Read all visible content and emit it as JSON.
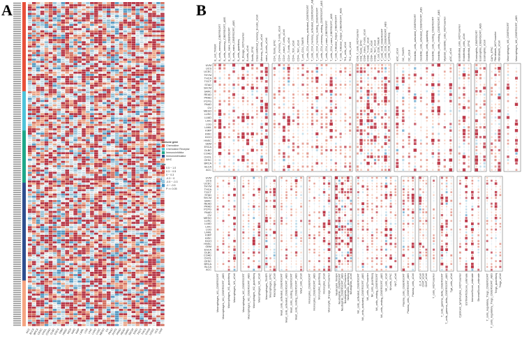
{
  "panels": {
    "a_label": "A",
    "b_label": "B"
  },
  "colors": {
    "chemokine": "#e8503a",
    "chemokine_receptor": "#4fc3d9",
    "immunoinhibitor": "#1fa88a",
    "immunostimulator": "#2f4f8f",
    "mhc": "#f4a582",
    "pos_strong": "#b2182b",
    "pos_mid": "#d6604d",
    "pos_weak": "#f4a582",
    "neg_weak": "#d1e5f0",
    "neg_mid": "#92c5de",
    "neg_strong": "#4393c3",
    "ns": "#eeeeee"
  },
  "legend": {
    "gene_title": "Immune gene",
    "genes": [
      "Chemokine",
      "Chemokine Receptor",
      "Immunoinhibitor",
      "Immunostimulator",
      "MHC"
    ],
    "cor_title": "cor",
    "cor_bins": [
      "0.5 ~ 1.0",
      "0.3 ~ 0.5",
      "0 ~ 0.3",
      "-0.3 ~ 0",
      "-0.5 ~ -0.3",
      "-1 ~ -0.5",
      "P >= 0.05"
    ]
  },
  "chart_data": [
    {
      "type": "heatmap",
      "panel": "A",
      "row_groups": [
        {
          "name": "Chemokine",
          "rows": 41
        },
        {
          "name": "Chemokine Receptor",
          "rows": 18
        },
        {
          "name": "Immunoinhibitor",
          "rows": 24
        },
        {
          "name": "Immunostimulator",
          "rows": 45
        },
        {
          "name": "MHC",
          "rows": 21
        }
      ],
      "columns": [
        "ACC",
        "BLCA",
        "BRCA",
        "CESC",
        "CHOL",
        "COAD",
        "DLBC",
        "ESCA",
        "GBM",
        "HNSC",
        "KICH",
        "KIRC",
        "KIRP",
        "LAML",
        "LGG",
        "LIHC",
        "LUAD",
        "LUSC",
        "MESO",
        "OV",
        "PAAD",
        "PCPG",
        "PRAD",
        "READ",
        "SARC",
        "SKCM",
        "STAD",
        "TGCT",
        "THCA",
        "THYM",
        "UCEC",
        "UCS",
        "UVM"
      ],
      "value_range": [
        -1,
        1
      ]
    },
    {
      "type": "heatmap",
      "panel": "B",
      "rows": [
        "UVM",
        "UCS",
        "UCEC",
        "THYM",
        "THCA",
        "TGCT",
        "STAD",
        "SKCM",
        "SARC",
        "READ",
        "PRAD",
        "PCPG",
        "PAAD",
        "OV",
        "MESO",
        "LUSC",
        "LUAD",
        "LIHC",
        "LGG",
        "LAML",
        "KIRP",
        "KIRC",
        "KICH",
        "HNSC",
        "GBM",
        "ESCA",
        "DLBC",
        "COAD",
        "CHOL",
        "CESC",
        "BRCA",
        "BLCA",
        "ACC"
      ],
      "top_groups": [
        [
          "B_cell_TIMER",
          "B_cells_memory_CIBERSORT",
          "B_cells_memory_CIBERSORT_ABS",
          "B_cells_naive_CIBERSORT",
          "B_cells_naive_CIBERSORT_ABS",
          "B_cells_quantiseq",
          "B_lineage_MCPcounter",
          "B-cells_xCell",
          "Bcells_EPIC",
          "Class-switched_memory_B-cells_xCell",
          "Memory_B-cells_xCell",
          "naive_B-cells_xCell"
        ],
        [
          "CD4_Tcells_EPIC",
          "CD4+_memory_T-cells_xCell",
          "CD4+_naive_T-cells_xCell",
          "CD4+_T-cells_xCell",
          "CD4+_Tcm_xCell",
          "CD4+_Tem_xCell",
          "T_cell_CD4_TIMER",
          "T_cells_CD4_memory_activated_CIBERSORT",
          "T_cells_CD4_memory_activated_CIBERSORT_ABS",
          "T_cells_CD4_memory_resting_CIBERSORT",
          "T_cells_CD4_memory_resting_CIBERSORT_ABS",
          "T_cells_CD4_naive_CIBERSORT",
          "T_cells_CD4_naive_CIBERSORT_ABS",
          "T_cells_follicular_helper_CIBERSORT",
          "T_cells_follicular_helper_CIBERSORT_ABS",
          "Th1_cells_xCell",
          "Th2_cells_xCell"
        ],
        [
          "CD8_T_cells_MCPcounter",
          "CD8_Tcells_EPIC",
          "CD8+_naive_T-cells_xCell",
          "CD8+_T-cells_xCell",
          "CD8+_Tcm_xCell",
          "CD8+_Tem_xCell",
          "T_cell_CD8_TIMER",
          "T_cells_CD8_CIBERSORT",
          "T_cells_CD8_CIBERSORT_ABS",
          "T_cells_CD8_quantiseq"
        ],
        [
          "aDC_xCell",
          "DC_TIMER",
          "DC_xCell",
          "Dendritic_cells_activated_CIBERSORT",
          "Dendritic_cells_activated_CIBERSORT_ABS",
          "Dendritic_cells_quantiseq",
          "Dendritic_cells_resting_CIBERSORT",
          "Dendritic_cells_resting_CIBERSORT_ABS",
          "Myeloid_dendritic_cells_MCPcounter",
          "pDC_xCell"
        ],
        [
          "Endothelial_cells_MCPcounter",
          "Endothelial_cells_xCell",
          "Endothelial_EPIC"
        ],
        [
          "Eosinophils_CIBERSORT",
          "Eosinophils_CIBERSORT_ABS",
          "Eosinophils_xCell"
        ],
        [
          "CAFs_EPIC",
          "Fibroblasts_MCPcounter",
          "Fibroblasts_xCell"
        ],
        [
          "Macrophages_M0_CIBERSORT",
          "Macrophages_M0_CIBERSORT_ABS"
        ]
      ],
      "bottom_groups": [
        [
          "Macrophages_M1_CIBERSORT",
          "Macrophages_M1_CIBERSORT_ABS",
          "Macrophages_M1_quantiseq",
          "Macrophages_M1_xCell"
        ],
        [
          "Macrophages_M2_CIBERSORT",
          "Macrophages_M2_CIBERSORT_ABS",
          "Macrophages_M2_quantiseq",
          "Macrophages_M2_xCell"
        ],
        [
          "Macrophages_TIMER",
          "Macrophages_EPIC",
          "Macrophages_xCell"
        ],
        [
          "Mast_cells_activated_CIBERSORT",
          "Mast_cells_activated_CIBERSORT_ABS",
          "Mast_cells_resting_CIBERSORT",
          "Mast_cells_resting_CIBERSORT_ABS",
          "Mast_cells_xCell"
        ],
        [
          "Monocytes_CIBERSORT",
          "Monocytes_CIBERSORT_ABS",
          "Monocytes_quantiseq",
          "Monocytes_xCell",
          "Monocytic_lineage_MCPcounter"
        ],
        [
          "Neutrophil_TIMER",
          "Neutrophils_CIBERSORT",
          "Neutrophils_CIBERSORT_ABS",
          "Neutrophils_MCPcounter",
          "Neutrophils_quantiseq",
          "Neutrophils_xCell"
        ],
        [
          "NK_cells_activated_CIBERSORT",
          "NK_cells_activated_CIBERSORT_ABS",
          "NK_cells_MCPcounter",
          "NK_cells_quantiseq",
          "NK_cells_resting_CIBERSORT",
          "NK_cells_resting_CIBERSORT_ABS",
          "NK_cells_xCell",
          "NKcells_EPIC",
          "NKT_xCell"
        ],
        [
          "Plasma_cells_CIBERSORT",
          "Plasma_cells_CIBERSORT_ABS",
          "Plasma_cells_xCell"
        ],
        [
          "CLP_xCell",
          "CMP_xCell",
          "GMP_xCell"
        ],
        [
          "T_cells_MCPcounter"
        ],
        [
          "T_cells_gamma_delta_CIBERSORT",
          "T_cells_gamma_delta_CIBERSORT_ABS",
          "Tgd_cells_xCell"
        ],
        [
          "Cytotoxic_lymphocytes_MCPcounter",
          "ESTIMATEScore_estimate",
          "ImmuneScore_estimate",
          "StromalScore_estimate"
        ],
        [
          "T_cells_regulatory_Tregs_CIBERSORT",
          "T_cells_regulatory_Tregs_CIBERSORT_ABS",
          "Tregs_quantiseq",
          "Tregs_xCell"
        ]
      ],
      "value_range": [
        -1,
        1
      ]
    }
  ]
}
